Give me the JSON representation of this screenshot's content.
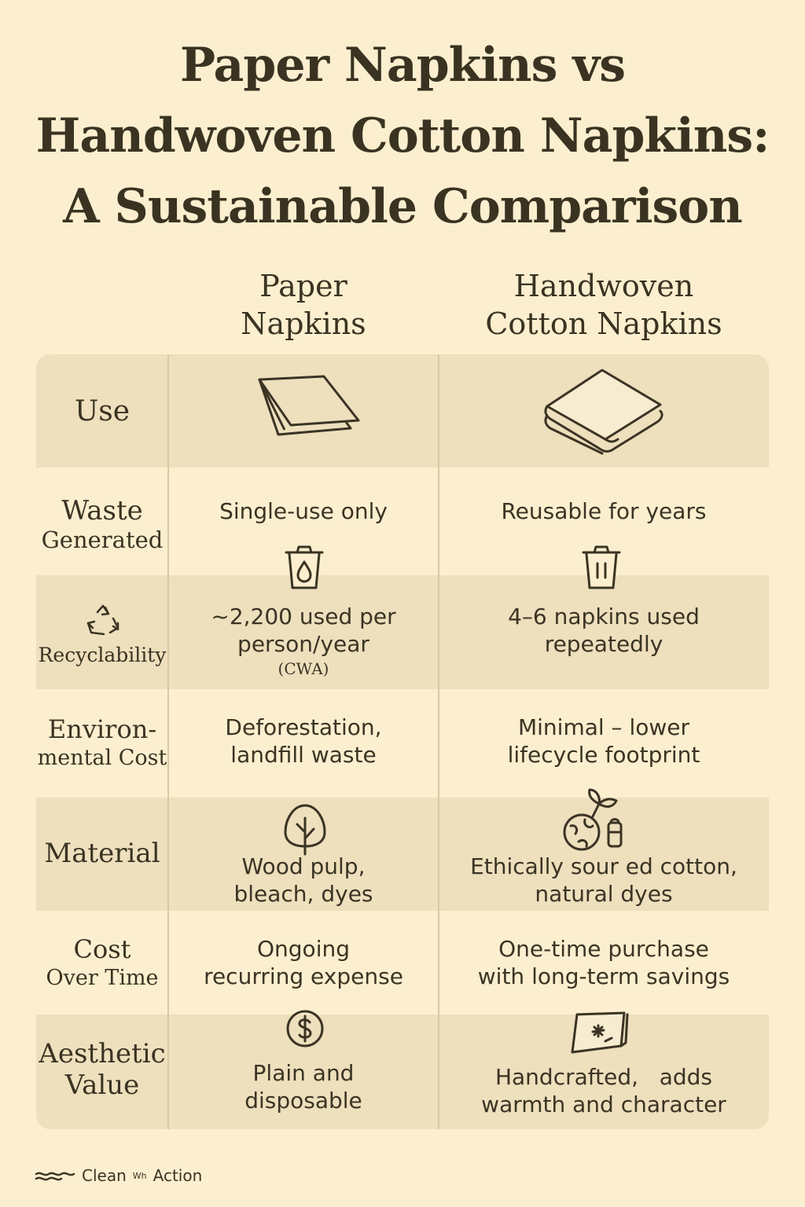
{
  "title": {
    "line1": "Paper Napkins vs",
    "line2": "Handwoven Cotton Napkins:",
    "line3": "A Sustainable Comparison"
  },
  "columns": {
    "paper": {
      "line1": "Paper",
      "line2": "Napkins"
    },
    "cotton": {
      "line1": "Handwoven",
      "line2": "Cotton Napkins"
    }
  },
  "rows": {
    "use": {
      "label": "Use"
    },
    "waste": {
      "label_line1": "Waste",
      "label_line2": "Generated",
      "paper": "Single-use only",
      "cotton": "Reusable for years"
    },
    "recycle": {
      "label": "Recyclability",
      "paper_line1": "~2,200 used per",
      "paper_line2": "person/year",
      "paper_note": "(CWA)",
      "cotton_line1": "4–6 napkins used",
      "cotton_line2": "repeatedly"
    },
    "env": {
      "label_line1": "Environ-",
      "label_line2": "mental Cost",
      "paper_line1": "Deforestation,",
      "paper_line2": "landfill waste",
      "cotton_line1": "Minimal – lower",
      "cotton_line2": "lifecycle footprint"
    },
    "material": {
      "label": "Material",
      "paper_line1": "Wood pulp,",
      "paper_line2": "bleach, dyes",
      "cotton_line1": "Ethically sour ed cotton,",
      "cotton_line2": "natural dyes"
    },
    "cost": {
      "label_line1": "Cost",
      "label_line2": "Over Time",
      "paper_line1": "Ongoing",
      "paper_line2": "recurring expense",
      "cotton_line1": "One-time purchase",
      "cotton_line2": "with long-term savings"
    },
    "aesthetic": {
      "label_line1": "Aesthetic",
      "label_line2": "Value",
      "paper_line1": "Plain and",
      "paper_line2": "disposable",
      "cotton_line1": "Handcrafted,   adds",
      "cotton_line2": "warmth and character"
    }
  },
  "footer": {
    "text1": "Clean",
    "sup": "Wh",
    "text2": "Action"
  },
  "colors": {
    "background": "#fbefcf",
    "shaded_row": "#eedfbd",
    "ink": "#3b3424"
  },
  "icons": [
    "paper-napkin-icon",
    "folded-cloth-stack-icon",
    "trash-can-drop-icon",
    "trash-can-icon",
    "recycle-icon",
    "tree-icon",
    "cotton-plant-icon",
    "dollar-icon",
    "embroidered-napkin-icon"
  ]
}
